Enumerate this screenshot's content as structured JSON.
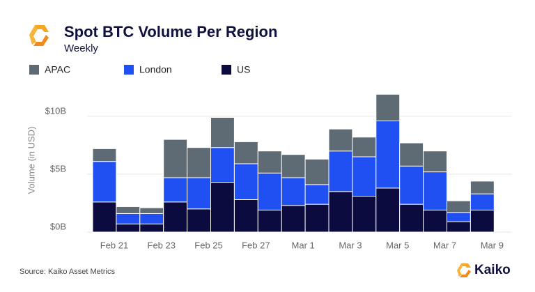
{
  "chart_data": {
    "type": "stacked-bar",
    "title": "Spot BTC Volume Per Region",
    "subtitle": "Weekly",
    "y_label": "Volume (in USD)",
    "source": "Source: Kaiko Asset Metrics",
    "brand": "Kaiko",
    "categories": [
      "Feb 21",
      null,
      "Feb 23",
      null,
      "Feb 25",
      null,
      "Feb 27",
      null,
      "Mar 1",
      null,
      "Mar 3",
      null,
      "Mar 5",
      null,
      "Mar 7",
      null,
      "Mar 9"
    ],
    "series": [
      {
        "name": "US",
        "color": "#0c0b3f",
        "values": [
          2.6,
          0.7,
          0.7,
          2.6,
          2.0,
          4.3,
          2.8,
          1.9,
          2.3,
          2.4,
          3.5,
          3.1,
          3.8,
          2.4,
          1.9,
          0.9,
          1.9
        ]
      },
      {
        "name": "London",
        "color": "#2150f2",
        "values": [
          3.5,
          0.9,
          0.9,
          2.1,
          2.7,
          3.0,
          3.1,
          3.2,
          2.4,
          1.7,
          3.5,
          3.4,
          5.8,
          3.3,
          3.3,
          0.8,
          1.4
        ]
      },
      {
        "name": "APAC",
        "color": "#5e6a74",
        "values": [
          1.1,
          0.6,
          0.5,
          3.3,
          2.6,
          2.6,
          1.9,
          1.9,
          2.0,
          2.2,
          1.9,
          1.7,
          2.3,
          2.0,
          1.8,
          1.0,
          1.1
        ]
      }
    ],
    "ylim": [
      0,
      13
    ],
    "yticks": [
      {
        "value": 0,
        "label": "$0B"
      },
      {
        "value": 5,
        "label": "$5B"
      },
      {
        "value": 10,
        "label": "$10B"
      }
    ],
    "grid": true
  }
}
